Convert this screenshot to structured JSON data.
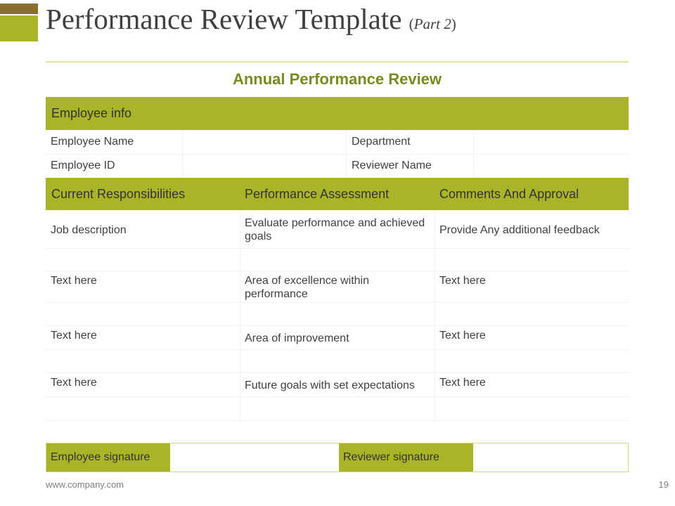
{
  "slide": {
    "title": "Performance Review Template",
    "title_part": "Part 2",
    "heading": "Annual Performance Review"
  },
  "employee_info": {
    "section_label": "Employee info",
    "rows": [
      {
        "label_left": "Employee Name",
        "label_right": "Department"
      },
      {
        "label_left": "Employee ID",
        "label_right": "Reviewer Name"
      }
    ]
  },
  "assessment": {
    "headers": [
      "Current Responsibilities",
      "Performance Assessment",
      "Comments And Approval"
    ],
    "rows": [
      [
        "Job description",
        "Evaluate performance and achieved goals",
        "Provide Any additional feedback"
      ],
      [
        "Text here",
        "Area of excellence within performance",
        "Text here"
      ],
      [
        "Text here",
        "Area of improvement",
        "Text here"
      ],
      [
        "Text here",
        "Future goals with set expectations",
        "Text here"
      ]
    ]
  },
  "signatures": {
    "employee_label": "Employee signature",
    "reviewer_label": "Reviewer signature"
  },
  "footer": {
    "url": "www.company.com",
    "page_number": "19"
  },
  "colors": {
    "accent": "#a9b426",
    "accent_dark": "#8a6d2f",
    "heading": "#7a8a1c"
  }
}
